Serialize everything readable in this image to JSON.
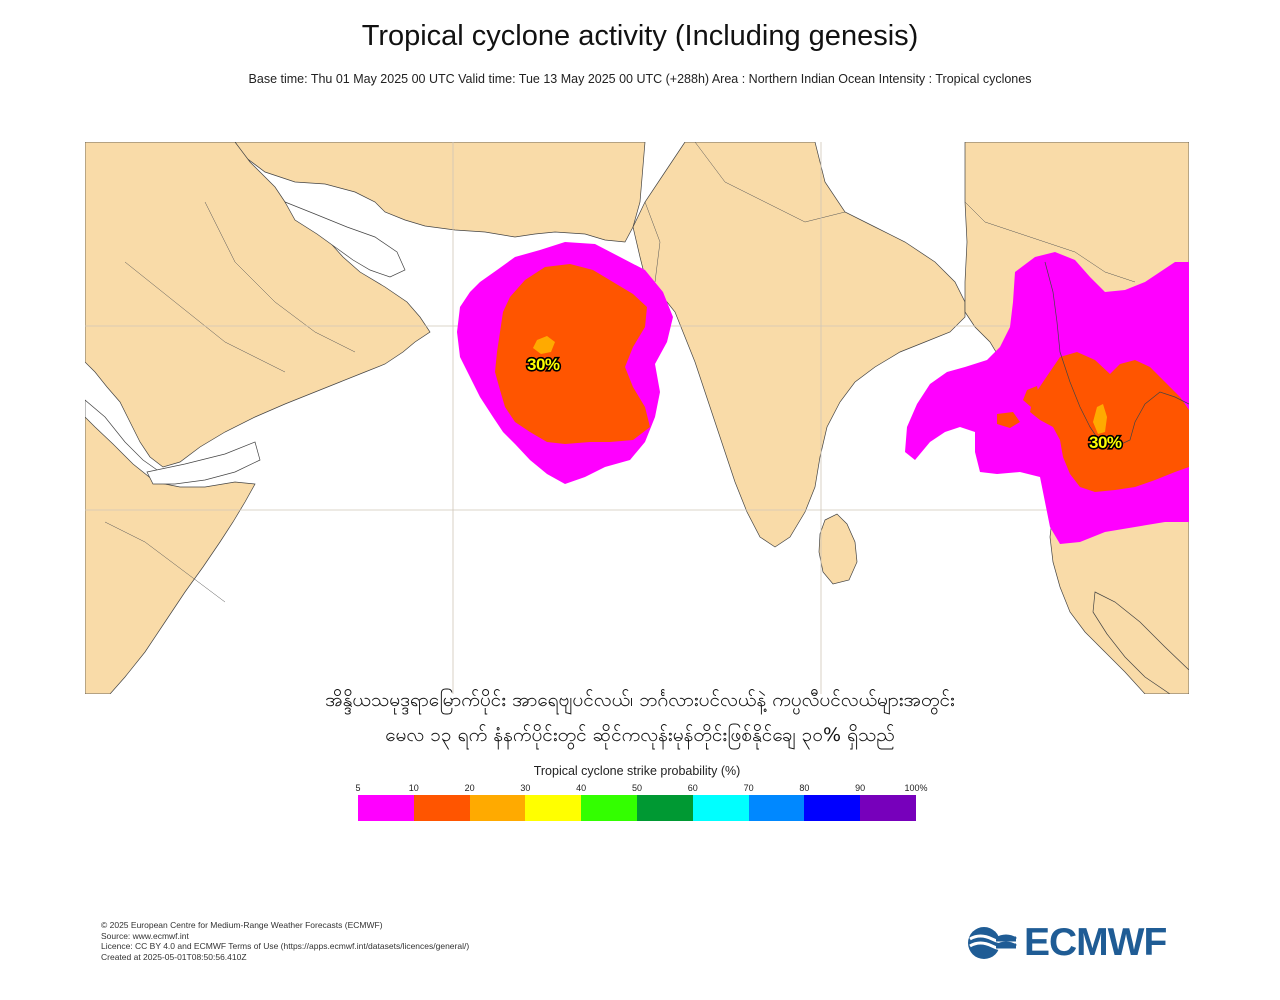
{
  "header": {
    "title": "Tropical cyclone activity (Including genesis)",
    "subtitle": "Base time: Thu 01 May 2025 00 UTC Valid time: Tue 13 May 2025 00 UTC (+288h) Area : Northern Indian Ocean Intensity : Tropical cyclones"
  },
  "map": {
    "land_color": "#f9dba8",
    "ocean_color": "#ffffff",
    "labels": [
      {
        "text": "30%"
      },
      {
        "text": "30%"
      }
    ]
  },
  "caption": {
    "line1": "အိန္ဒိယသမုဒ္ဒရာမြောက်ပိုင်း အာရေဗျပင်လယ်၊ ဘင်္ဂလားပင်လယ်နဲ့ ကပ္ပလီပင်လယ်များအတွင်း",
    "line2": "မေလ ၁၃ ရက် နံနက်ပိုင်းတွင် ဆိုင်ကလုန်းမုန်တိုင်းဖြစ်နိုင်ချေ ၃၀% ရှိသည်"
  },
  "legend": {
    "title": "Tropical cyclone strike probability (%)",
    "ticks": [
      "5",
      "10",
      "20",
      "30",
      "40",
      "50",
      "60",
      "70",
      "80",
      "90",
      "100%"
    ],
    "colors": [
      "#ff00ff",
      "#ff5500",
      "#ffaa00",
      "#ffff00",
      "#33ff00",
      "#009933",
      "#00ffff",
      "#0088ff",
      "#0000ff",
      "#7700bb"
    ]
  },
  "footer": {
    "line1": "© 2025 European Centre for Medium-Range Weather Forecasts (ECMWF)",
    "line2": "Source: www.ecmwf.int",
    "line3": "Licence: CC BY 4.0 and ECMWF Terms of Use (https://apps.ecmwf.int/datasets/licences/general/)",
    "line4": "Created at 2025-05-01T08:50:56.410Z"
  },
  "logo": {
    "text": "ECMWF",
    "color": "#1f5c95"
  }
}
